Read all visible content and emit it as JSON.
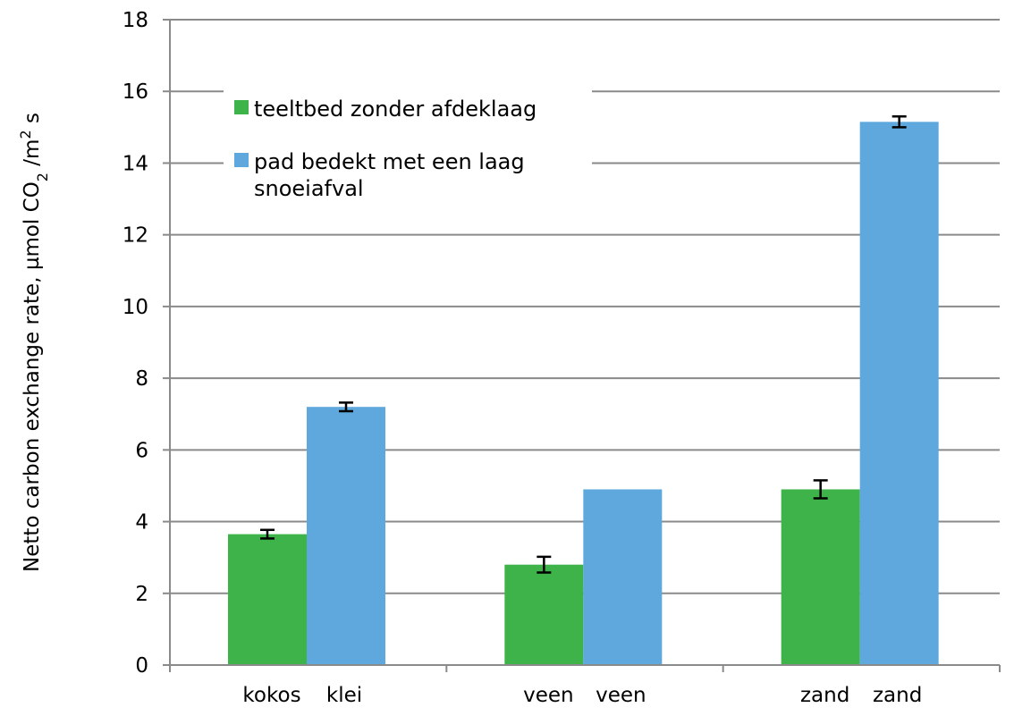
{
  "chart_data": {
    "type": "bar",
    "title": "",
    "xlabel": "",
    "ylabel": {
      "pre": "Netto carbon exchange rate, µmol CO",
      "sub": "2",
      "mid": " /m",
      "sup": "2",
      "post": " s"
    },
    "ylim": [
      0,
      18
    ],
    "yticks": [
      "0",
      "2",
      "4",
      "6",
      "8",
      "10",
      "12",
      "14",
      "16",
      "18"
    ],
    "grid": true,
    "legend_position": "top-left",
    "groups": [
      {
        "left_label": "kokos",
        "right_label": "klei"
      },
      {
        "left_label": "veen",
        "right_label": "veen"
      },
      {
        "left_label": "zand",
        "right_label": "zand"
      }
    ],
    "series": [
      {
        "name": "teeltbed zonder afdeklaag",
        "color": "#3db34a",
        "values": [
          3.65,
          2.8,
          4.9
        ],
        "errors": [
          0.12,
          0.22,
          0.25
        ]
      },
      {
        "name": "pad bedekt met een laag snoeiafval",
        "legend_lines": [
          "pad bedekt met een laag",
          "snoeiafval"
        ],
        "color": "#5ea8dd",
        "values": [
          7.2,
          4.9,
          15.15
        ],
        "errors": [
          0.12,
          0,
          0.15
        ]
      }
    ]
  }
}
